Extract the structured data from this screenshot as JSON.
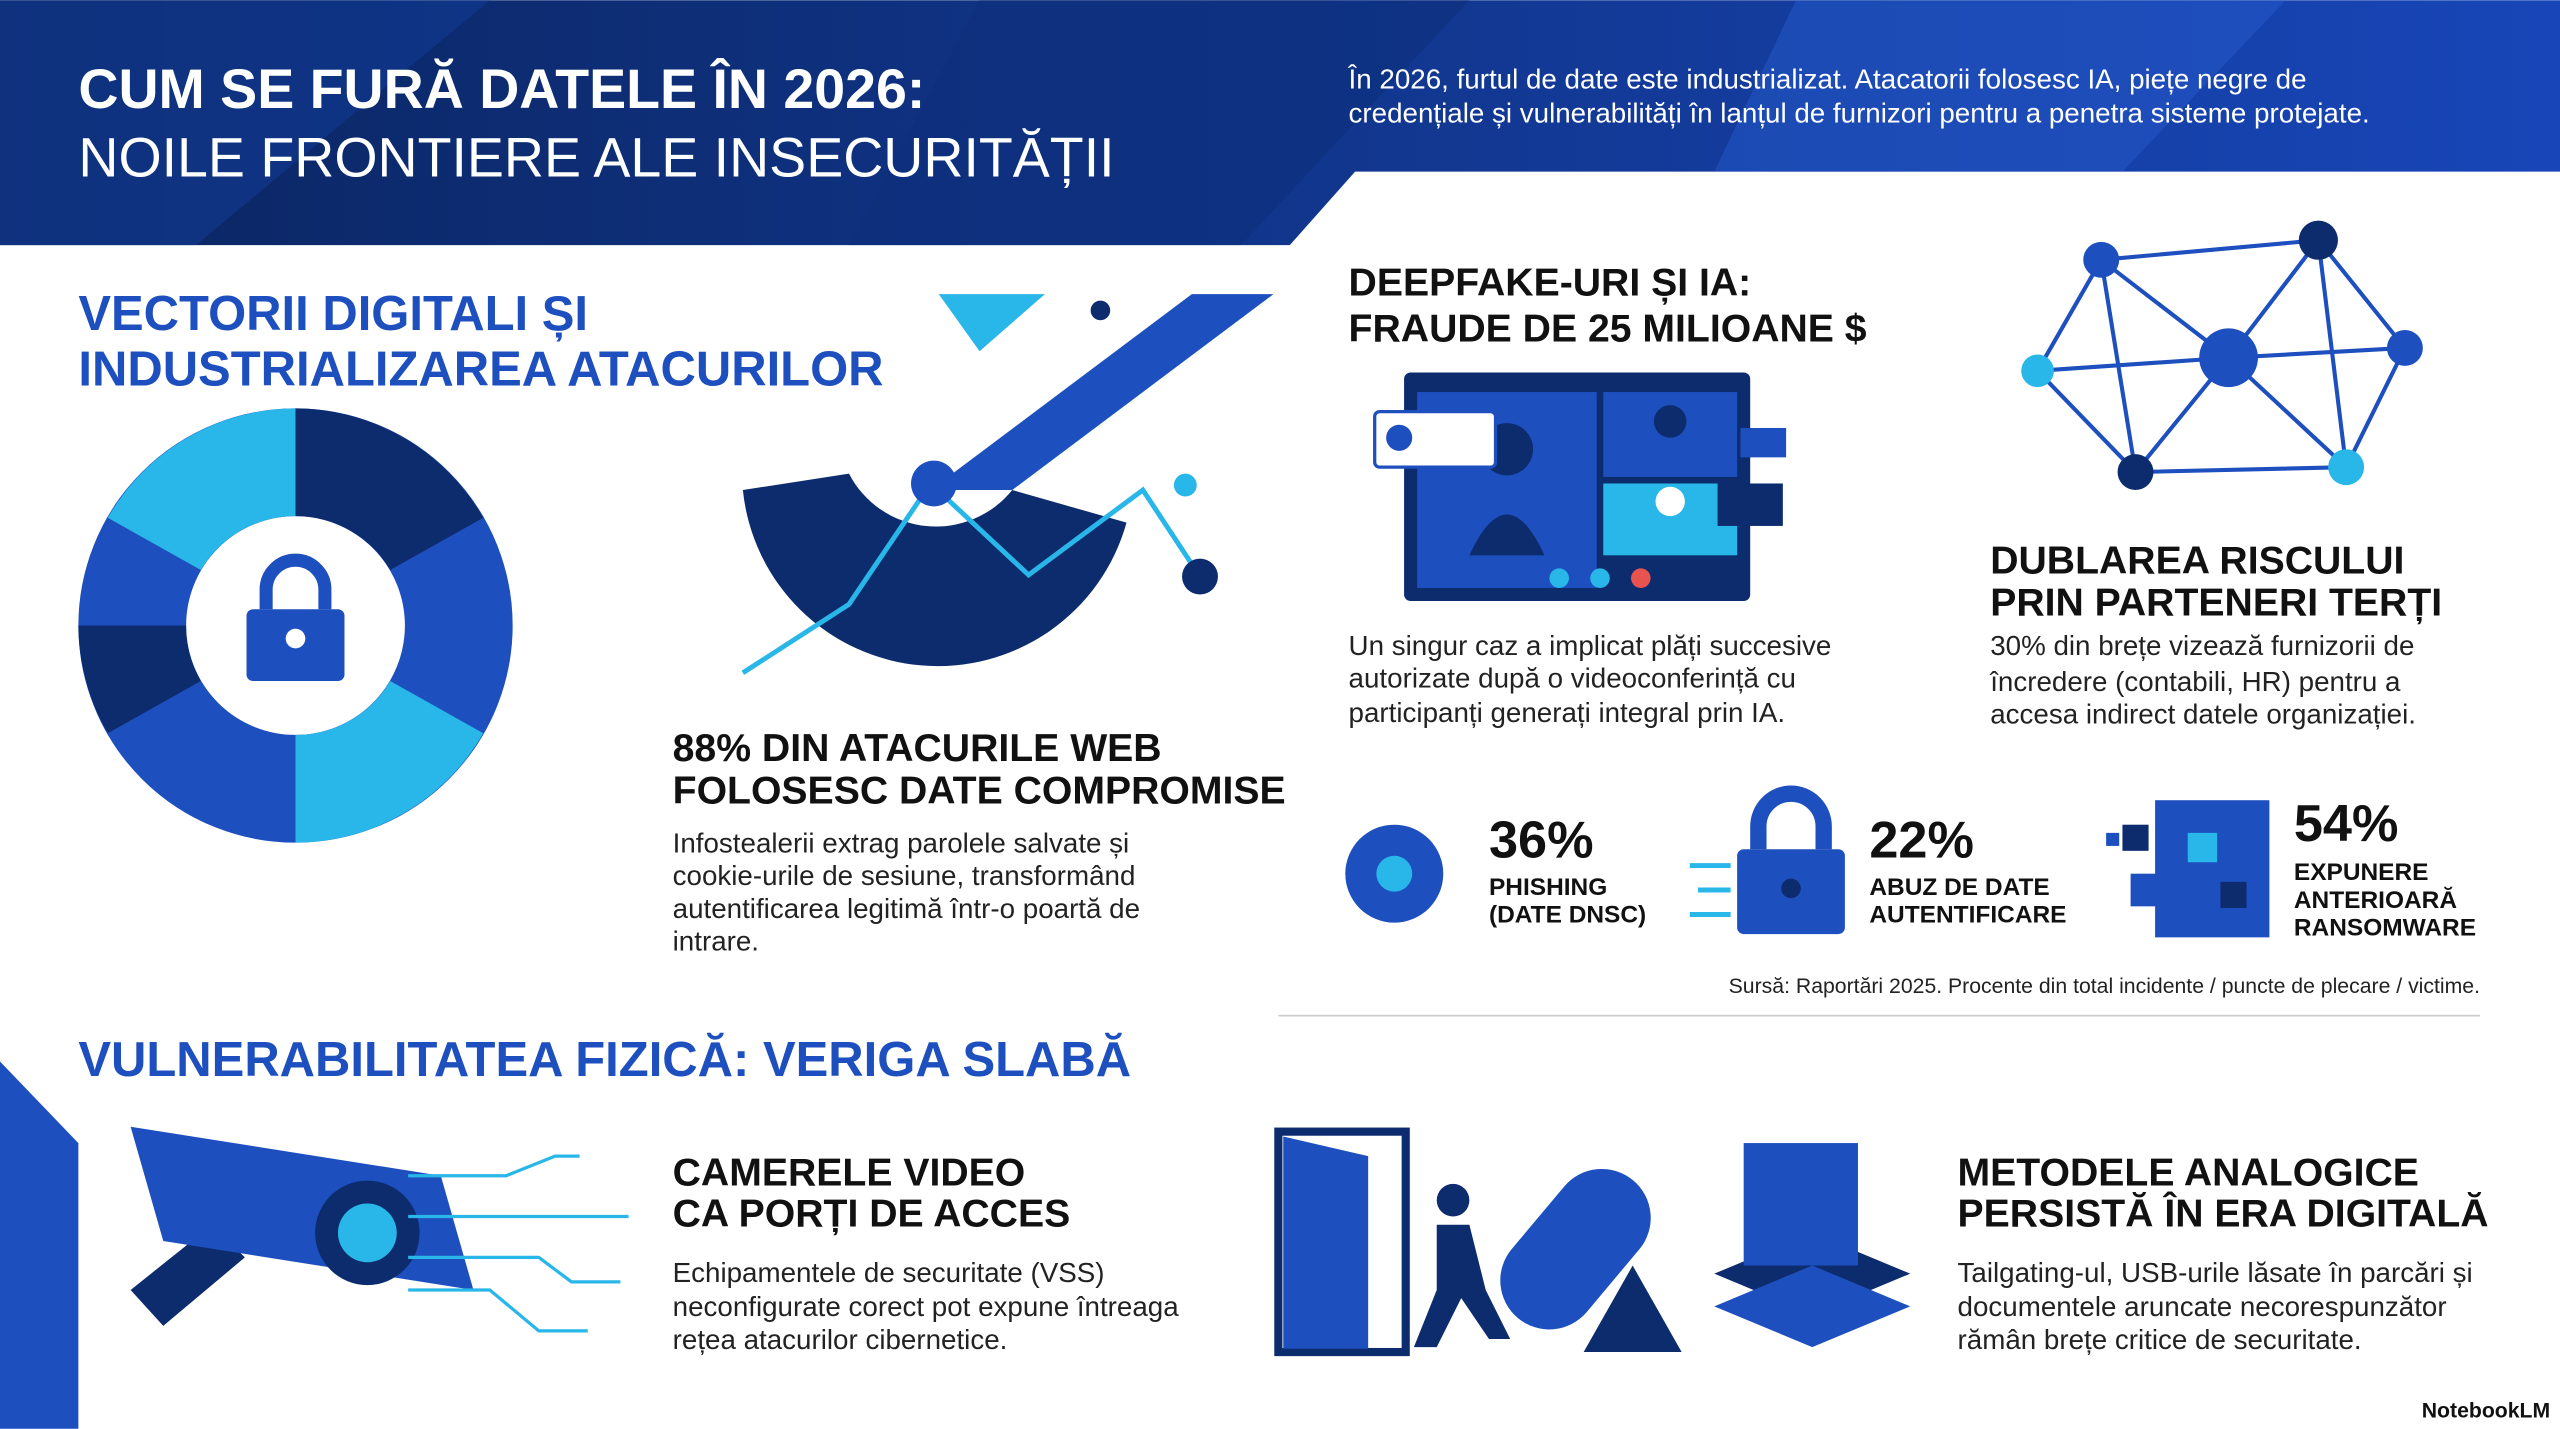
{
  "header": {
    "title_lines": [
      "CUM SE FURĂ DATELE ÎN 2026:",
      "NOILE FRONTIERE ALE INSECURITĂȚII"
    ],
    "intro_lines": [
      "În 2026, furtul de date este industrializat. Atacatorii folosesc IA, piețe negre de",
      "credențiale și vulnerabilități în lanțul de furnizori pentru a penetra sisteme protejate."
    ]
  },
  "vectors": {
    "heading_lines": [
      "VECTORII DIGITALI ȘI",
      "INDUSTRIALIZAREA ATACURILOR"
    ],
    "stat_heading_lines": [
      "88% DIN ATACURILE WEB",
      "FOLOSESC DATE COMPROMISE"
    ],
    "body_lines": [
      "Infostealerii extrag parolele salvate și",
      "cookie-urile de sesiune, transformând",
      "autentificarea legitimă într-o poartă de",
      "intrare."
    ]
  },
  "deepfake": {
    "heading_lines": [
      "DEEPFAKE-URI ȘI IA:",
      "FRAUDE DE 25 MILIOANE $"
    ],
    "body_lines": [
      "Un singur caz a implicat plăți succesive",
      "autorizate după o videoconferință cu",
      "participanți generați integral prin IA."
    ]
  },
  "third_party": {
    "heading_lines": [
      "DUBLAREA RISCULUI",
      "PRIN PARTENERI TERȚI"
    ],
    "body_lines": [
      "30% din brețe vizează furnizorii de",
      "încredere (contabili, HR) pentru a",
      "accesa indirect datele organizației."
    ]
  },
  "stats": [
    {
      "value": "36%",
      "label_lines": [
        "PHISHING",
        "(DATE DNSC)"
      ]
    },
    {
      "value": "22%",
      "label_lines": [
        "ABUZ DE DATE",
        "AUTENTIFICARE"
      ]
    },
    {
      "value": "54%",
      "label_lines": [
        "EXPUNERE",
        "ANTERIOARĂ",
        "RANSOMWARE"
      ]
    }
  ],
  "source": "Sursă: Raportări 2025. Procente din total incidente / puncte de plecare / victime.",
  "physical": {
    "heading": "VULNERABILITATEA FIZICĂ: VERIGA SLABĂ",
    "cameras": {
      "heading_lines": [
        "CAMERELE VIDEO",
        "CA PORȚI DE ACCES"
      ],
      "body_lines": [
        "Echipamentele de securitate (VSS)",
        "neconfigurate corect pot expune întreaga",
        "rețea atacurilor cibernetice."
      ]
    },
    "analog": {
      "heading_lines": [
        "METODELE ANALOGICE",
        "PERSISTĂ ÎN ERA DIGITALĂ"
      ],
      "body_lines": [
        "Tailgating-ul, USB-urile lăsate în parcări și",
        "documentele aruncate necorespunzător",
        "rămân brețe critice de securitate."
      ]
    }
  },
  "brand": "NotebookLM"
}
